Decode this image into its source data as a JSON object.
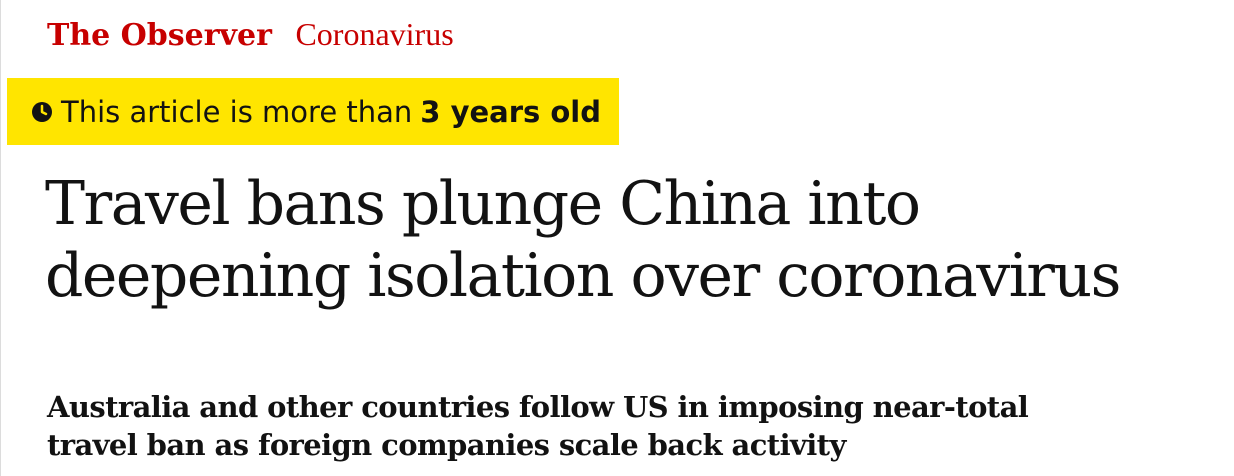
{
  "kicker": {
    "series": "The Observer",
    "section": "Coronavirus"
  },
  "age_warning": {
    "icon": "clock-icon",
    "text": "This article is more than",
    "age": "3 years old",
    "background": "#ffe500"
  },
  "article": {
    "headline": "Travel bans plunge China into deepening isolation over coronavirus",
    "standfirst": "Australia and other countries follow US in imposing near-total travel ban as foreign companies scale back activity"
  },
  "colors": {
    "accent": "#c70000",
    "text": "#121212"
  }
}
